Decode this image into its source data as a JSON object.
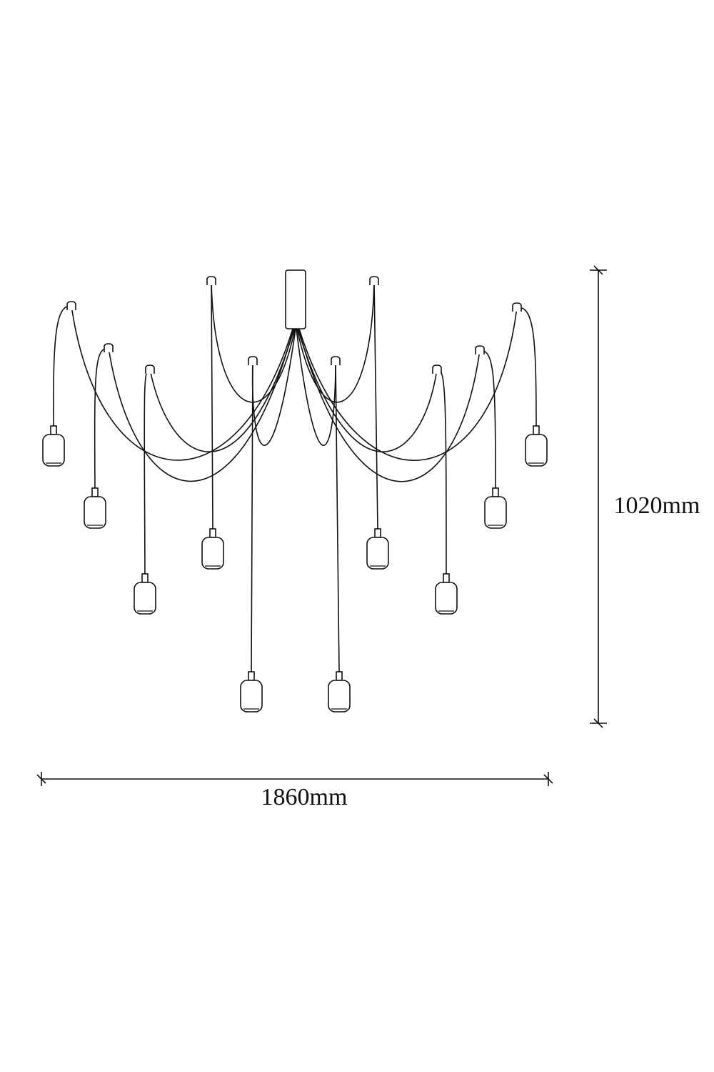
{
  "dimensions": {
    "height": "1020mm",
    "width": "1860mm"
  }
}
